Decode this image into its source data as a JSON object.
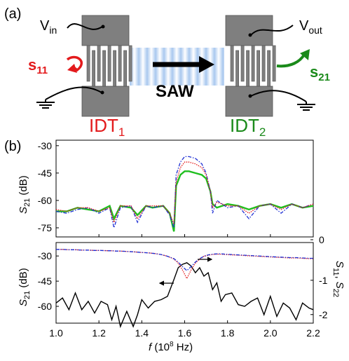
{
  "panel_a": {
    "label": "(a)",
    "vin_main": "V",
    "vin_sub": "in",
    "vout_main": "V",
    "vout_sub": "out",
    "s11_main": "s",
    "s11_sub": "11",
    "s21_main": "s",
    "s21_sub": "21",
    "saw_label": "SAW",
    "idt1_main": "IDT",
    "idt1_sub": "1",
    "idt2_main": "IDT",
    "idt2_sub": "2",
    "colors": {
      "red": "#e31a1c",
      "green": "#1a8a1a",
      "pad": "#7f7f7f",
      "wave": "#a9c8ef"
    }
  },
  "panel_b": {
    "label": "(b)",
    "xlabel_italic": "f",
    "xlabel_rest": " (10",
    "xlabel_exp": "8",
    "xlabel_end": " Hz)",
    "x_ticks": [
      "1.0",
      "1.2",
      "1.4",
      "1.6",
      "1.8",
      "2.0",
      "2.2"
    ],
    "top_ylabel_main": "S",
    "top_ylabel_sub": "21",
    "top_ylabel_unit": " (dB)",
    "top_y_ticks": [
      "-30",
      "-45",
      "-60",
      "-75"
    ],
    "bot_ylabel_main": "S",
    "bot_ylabel_sub": "21",
    "bot_ylabel_unit": " (dB)",
    "bot_y_ticks": [
      "-30",
      "-45",
      "-60"
    ],
    "right_ylabel_a": "S",
    "right_ylabel_a_sub": "11",
    "right_ylabel_sep": ", ",
    "right_ylabel_b": "S",
    "right_ylabel_b_sub": "22",
    "right_y_ticks": [
      "0",
      "-1",
      "-2"
    ]
  },
  "chart_data": [
    {
      "type": "line",
      "title": "",
      "xlabel": "f (10^8 Hz)",
      "ylabel": "S21 (dB)",
      "xlim": [
        1.0,
        2.2
      ],
      "ylim": [
        -80,
        -27
      ],
      "grid": false,
      "x": [
        1.0,
        1.05,
        1.1,
        1.15,
        1.2,
        1.25,
        1.27,
        1.3,
        1.35,
        1.38,
        1.42,
        1.45,
        1.5,
        1.53,
        1.55,
        1.56,
        1.58,
        1.6,
        1.62,
        1.65,
        1.68,
        1.7,
        1.72,
        1.73,
        1.75,
        1.8,
        1.85,
        1.9,
        1.95,
        2.0,
        2.05,
        2.1,
        2.15,
        2.2
      ],
      "series": [
        {
          "color": "#1fbf1f",
          "values": [
            -66,
            -66,
            -64,
            -65,
            -66,
            -63,
            -70,
            -63,
            -64,
            -68,
            -63,
            -64,
            -63,
            -67,
            -77,
            -52,
            -46,
            -44,
            -44,
            -45,
            -46,
            -48,
            -55,
            -62,
            -64,
            -62,
            -63,
            -65,
            -63,
            -62,
            -64,
            -62,
            -64,
            -63
          ]
        },
        {
          "color": "#1e2fd4",
          "values": [
            -66,
            -67,
            -65,
            -64,
            -67,
            -64,
            -75,
            -64,
            -63,
            -72,
            -63,
            -64,
            -63,
            -68,
            -75,
            -46,
            -39,
            -36,
            -36,
            -37,
            -40,
            -45,
            -55,
            -67,
            -60,
            -64,
            -63,
            -70,
            -63,
            -62,
            -67,
            -62,
            -64,
            -62
          ]
        },
        {
          "color": "#e31a1c",
          "values": [
            -65,
            -66,
            -64,
            -64,
            -66,
            -64,
            -72,
            -63,
            -63,
            -70,
            -63,
            -63,
            -63,
            -67,
            -73,
            -50,
            -42,
            -39,
            -39,
            -40,
            -42,
            -46,
            -55,
            -64,
            -61,
            -63,
            -63,
            -67,
            -63,
            -62,
            -65,
            -62,
            -64,
            -62
          ]
        }
      ]
    },
    {
      "type": "line",
      "title": "",
      "xlabel": "f (10^8 Hz)",
      "ylabel": "S21 (dB)",
      "y2label": "S11, S22",
      "xlim": [
        1.0,
        2.2
      ],
      "ylim": [
        -70,
        -22
      ],
      "y2lim": [
        -2.25,
        0.1
      ],
      "grid": false,
      "x": [
        1.0,
        1.03,
        1.06,
        1.09,
        1.12,
        1.15,
        1.18,
        1.21,
        1.24,
        1.26,
        1.28,
        1.3,
        1.33,
        1.36,
        1.38,
        1.4,
        1.43,
        1.46,
        1.49,
        1.52,
        1.55,
        1.57,
        1.59,
        1.61,
        1.63,
        1.65,
        1.67,
        1.69,
        1.71,
        1.73,
        1.75,
        1.77,
        1.79,
        1.82,
        1.85,
        1.88,
        1.91,
        1.94,
        1.97,
        2.0,
        2.03,
        2.06,
        2.09,
        2.12,
        2.15,
        2.18,
        2.2
      ],
      "series": [
        {
          "color": "#000000",
          "axis": "left",
          "values": [
            -58,
            -55,
            -62,
            -52,
            -62,
            -57,
            -64,
            -57,
            -59,
            -68,
            -60,
            -72,
            -63,
            -72,
            -65,
            -56,
            -61,
            -57,
            -56,
            -54,
            -44,
            -37,
            -35,
            -34,
            -36,
            -40,
            -37,
            -42,
            -40,
            -50,
            -46,
            -57,
            -53,
            -52,
            -59,
            -60,
            -57,
            -55,
            -65,
            -54,
            -66,
            -58,
            -61,
            -68,
            -58,
            -61,
            -62
          ]
        },
        {
          "color": "#e31a1c",
          "axis": "right",
          "values": [
            -0.1,
            -0.1,
            -0.11,
            -0.11,
            -0.12,
            -0.12,
            -0.13,
            -0.13,
            -0.14,
            -0.14,
            -0.15,
            -0.15,
            -0.16,
            -0.17,
            -0.18,
            -0.19,
            -0.2,
            -0.22,
            -0.25,
            -0.3,
            -0.38,
            -0.5,
            -0.7,
            -0.95,
            -0.7,
            -0.5,
            -0.38,
            -0.3,
            -0.27,
            -0.25,
            -0.24,
            -0.24,
            -0.25,
            -0.26,
            -0.27,
            -0.28,
            -0.29,
            -0.3,
            -0.31,
            -0.32,
            -0.33,
            -0.34,
            -0.35,
            -0.35,
            -0.36,
            -0.37,
            -0.37
          ]
        },
        {
          "color": "#1e2fd4",
          "axis": "right",
          "values": [
            -0.1,
            -0.1,
            -0.11,
            -0.11,
            -0.12,
            -0.12,
            -0.13,
            -0.13,
            -0.14,
            -0.14,
            -0.15,
            -0.15,
            -0.16,
            -0.17,
            -0.18,
            -0.19,
            -0.2,
            -0.22,
            -0.25,
            -0.3,
            -0.37,
            -0.47,
            -0.6,
            -0.72,
            -0.6,
            -0.47,
            -0.37,
            -0.3,
            -0.26,
            -0.24,
            -0.23,
            -0.23,
            -0.24,
            -0.25,
            -0.26,
            -0.27,
            -0.28,
            -0.29,
            -0.3,
            -0.31,
            -0.32,
            -0.33,
            -0.34,
            -0.34,
            -0.35,
            -0.36,
            -0.36
          ]
        }
      ]
    }
  ]
}
